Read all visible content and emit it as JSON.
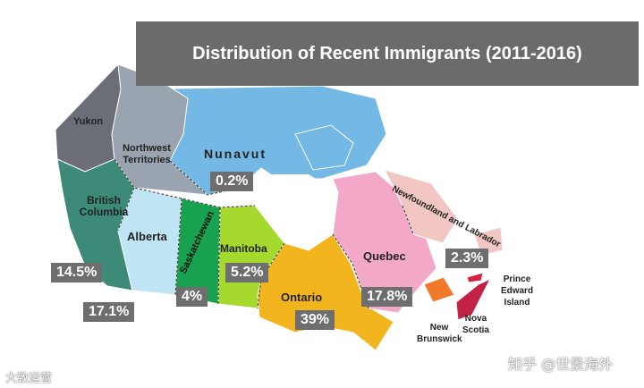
{
  "title": "Distribution of Recent Immigrants (2011-2016)",
  "regions": {
    "yukon": {
      "name": "Yukon",
      "color": "#6b6e76"
    },
    "nwt": {
      "name": "Northwest Territories",
      "color": "#9aa3b0"
    },
    "nunavut": {
      "name": "Nunavut",
      "value": "0.2%",
      "color": "#74b8e6"
    },
    "bc": {
      "name": "British Columbia",
      "value": "17.1%",
      "color": "#3d8a79"
    },
    "alberta": {
      "name": "Alberta",
      "value": "14.5%",
      "color": "#bfe4f3"
    },
    "saskatchewan": {
      "name": "Saskatchewan",
      "value": "4%",
      "color": "#18a14f"
    },
    "manitoba": {
      "name": "Manitoba",
      "value": "5.2%",
      "color": "#a6d92e"
    },
    "ontario": {
      "name": "Ontario",
      "value": "39%",
      "color": "#f3b51e"
    },
    "quebec": {
      "name": "Quebec",
      "value": "17.8%",
      "color": "#f4a8c7"
    },
    "nl": {
      "name": "Newfoundland and Labrador",
      "value": "2.3%",
      "color": "#f2c6c2"
    },
    "pei": {
      "name": "Prince Edward Island",
      "color": "#d6203f"
    },
    "ns": {
      "name": "Nova Scotia",
      "color": "#c42146"
    },
    "nb": {
      "name": "New Brunswick",
      "color": "#f07a2a"
    }
  },
  "watermarks": {
    "left": "大致运营",
    "right": "知乎 @世景海外"
  }
}
